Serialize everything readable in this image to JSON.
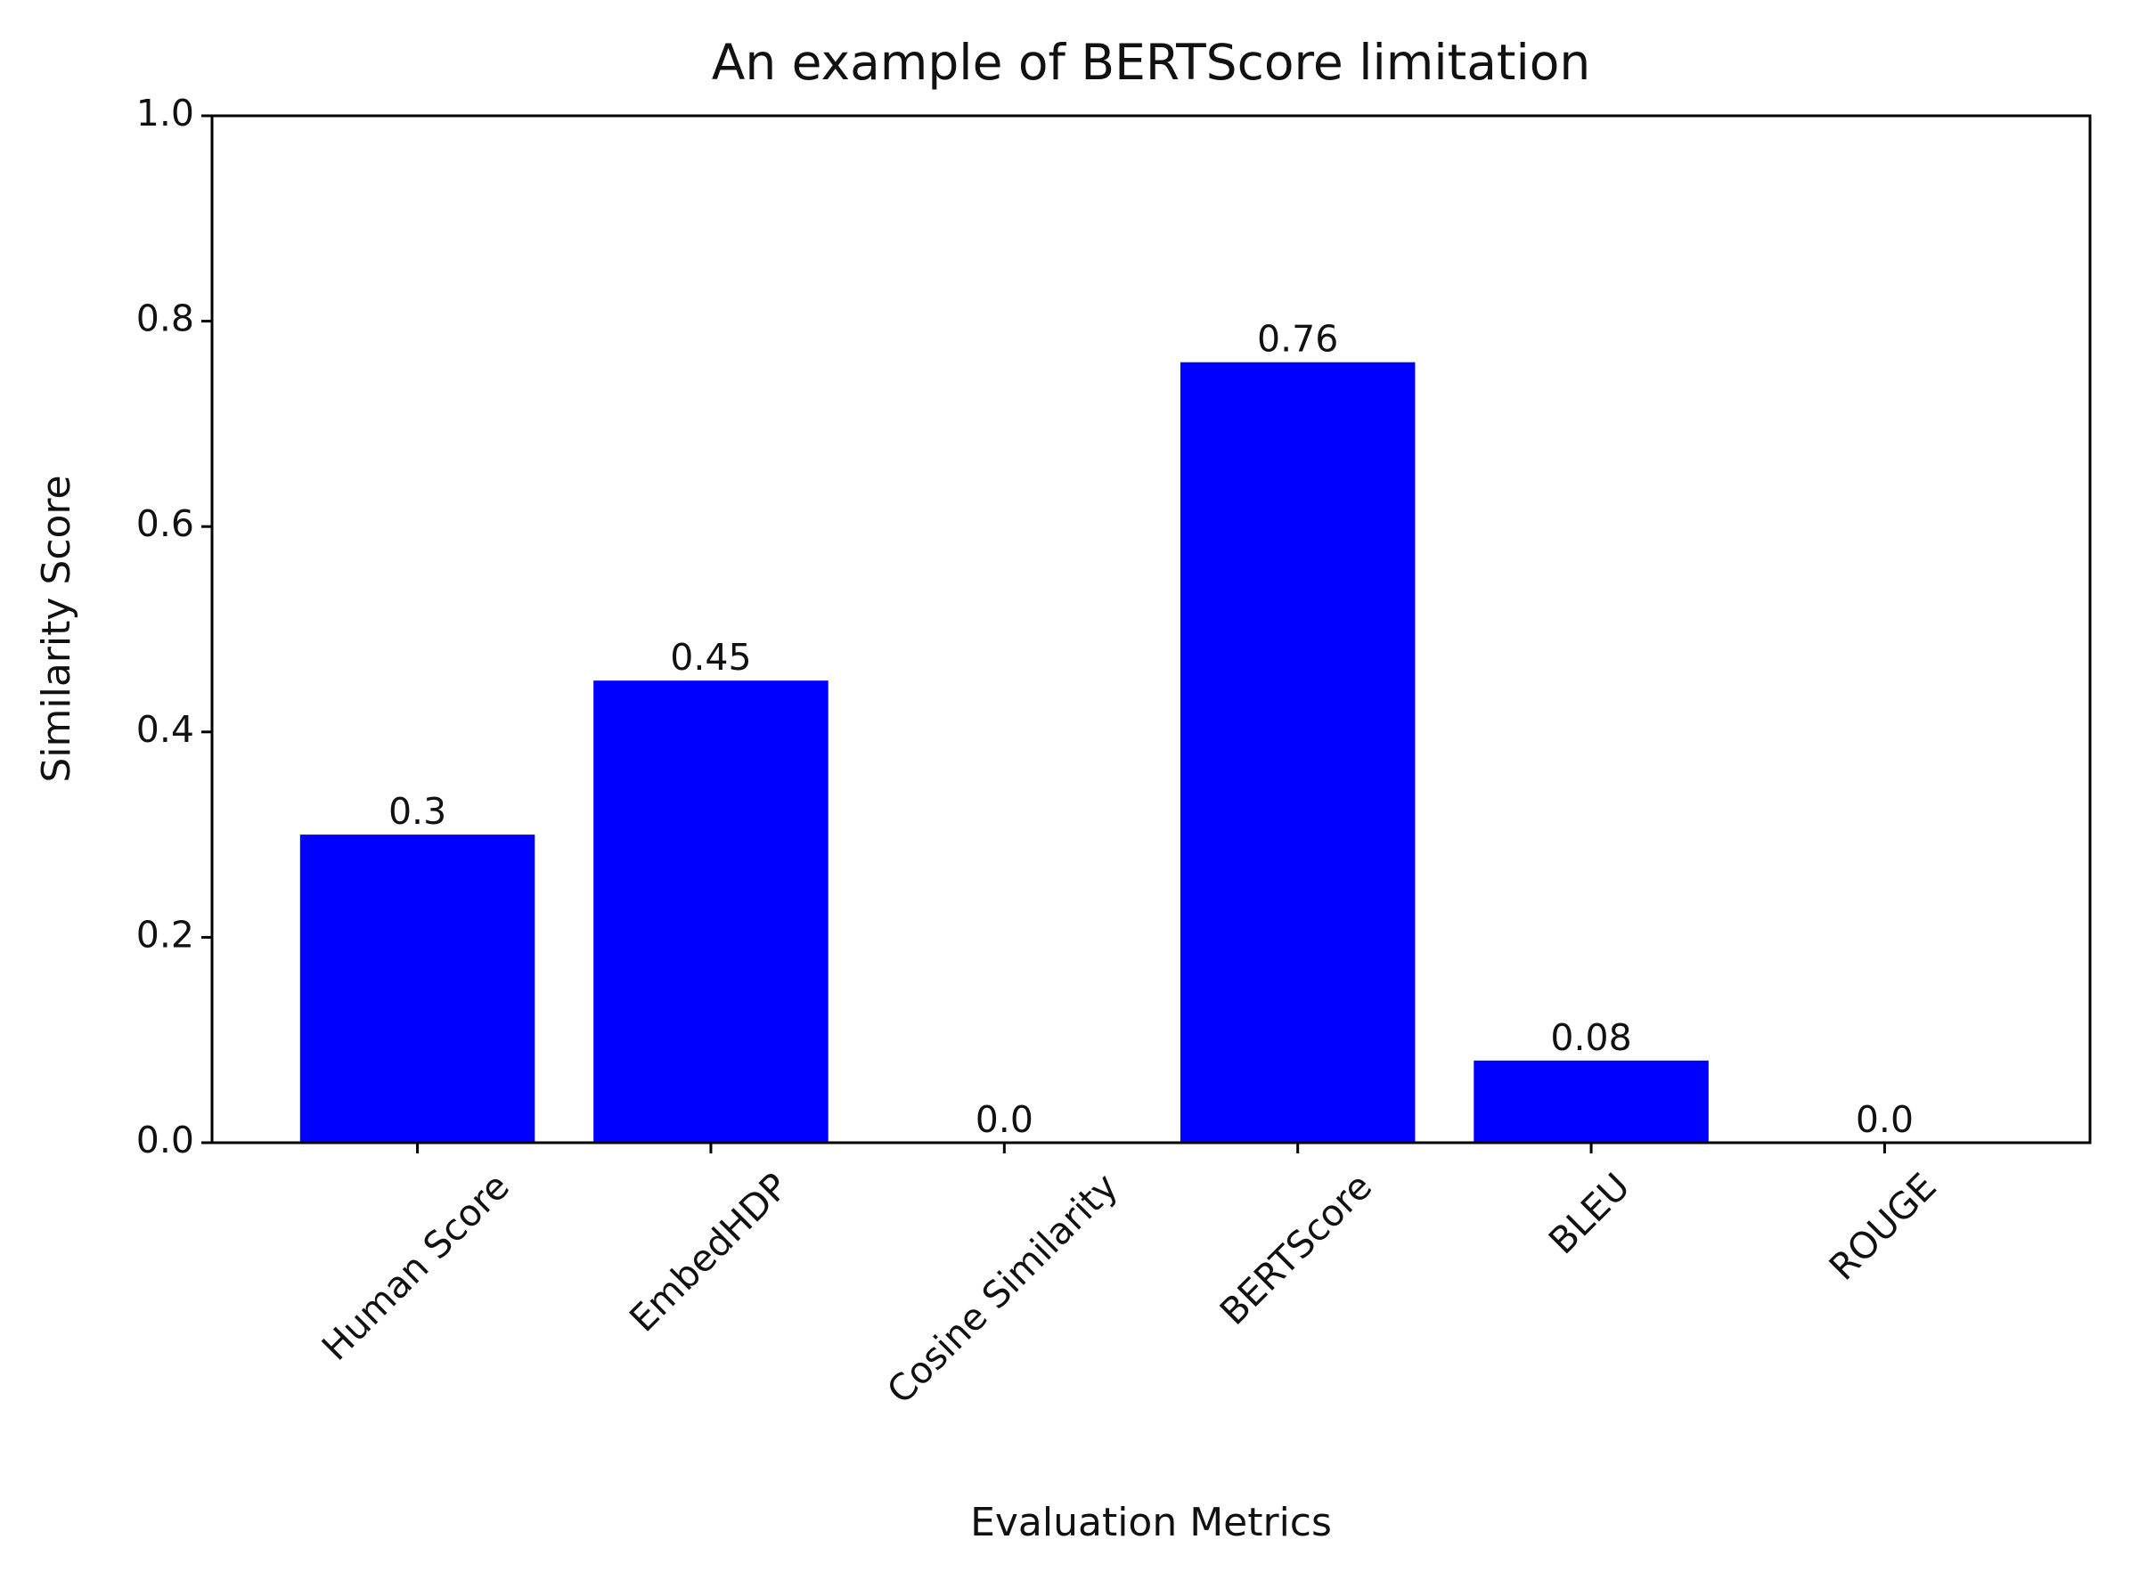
{
  "chart_data": {
    "type": "bar",
    "title": "An example of BERTScore limitation",
    "x_label": "Evaluation Metrics",
    "y_label": "Similarity Score",
    "categories": [
      "Human Score",
      "EmbedHDP",
      "Cosine Similarity",
      "BERTScore",
      "BLEU",
      "ROUGE"
    ],
    "values": [
      0.3,
      0.45,
      0,
      0.76,
      0.08,
      0
    ],
    "value_labels": [
      "0.3",
      "0.45",
      "0.0",
      "0.76",
      "0.08",
      "0.0"
    ],
    "color": "#0000ff",
    "ylim": [
      0,
      1
    ],
    "yticks": [
      {
        "value": 0,
        "label": "0.0"
      },
      0.2,
      0.4,
      0.6,
      0.8,
      {
        "value": 1,
        "label": "1.0"
      }
    ],
    "grid": false
  }
}
